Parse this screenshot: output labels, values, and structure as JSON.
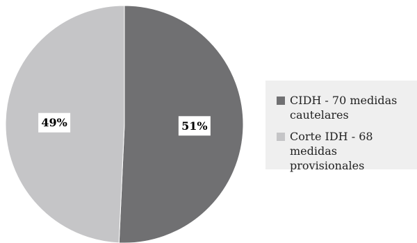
{
  "chart_data": {
    "type": "pie",
    "title": "",
    "legend_position": "right",
    "slices": [
      {
        "label": "CIDH - 70 medidas cautelares",
        "value": 70,
        "percent_label": "51%",
        "color": "#707072"
      },
      {
        "label": "Corte IDH - 68 medidas provisionales",
        "value": 68,
        "percent_label": "49%",
        "color": "#c5c5c7"
      }
    ]
  }
}
